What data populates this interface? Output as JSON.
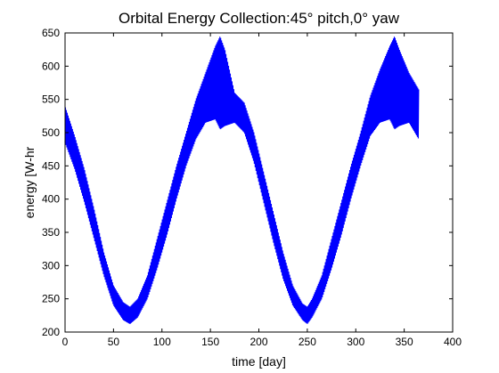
{
  "chart_data": {
    "type": "line",
    "title": "Orbital Energy Collection:45° pitch,0° yaw",
    "xlabel": "time [day]",
    "ylabel": "energy [W-hr",
    "xlim": [
      0,
      400
    ],
    "ylim": [
      200,
      650
    ],
    "xticks": [
      0,
      50,
      100,
      150,
      200,
      250,
      300,
      350,
      400
    ],
    "yticks": [
      200,
      250,
      300,
      350,
      400,
      450,
      500,
      550,
      600,
      650
    ],
    "grid": false,
    "legend": "none",
    "series": [
      {
        "color": "#0000ff",
        "style": "dense oscillating band",
        "x": [
          0,
          10,
          20,
          30,
          40,
          50,
          60,
          67,
          75,
          85,
          95,
          105,
          115,
          125,
          135,
          145,
          155,
          160,
          165,
          175,
          185,
          195,
          205,
          215,
          225,
          235,
          245,
          250,
          255,
          265,
          275,
          285,
          295,
          305,
          315,
          325,
          335,
          340,
          345,
          355,
          365
        ],
        "y_low": [
          485,
          445,
          395,
          340,
          285,
          240,
          218,
          212,
          222,
          250,
          295,
          345,
          400,
          450,
          490,
          515,
          520,
          505,
          510,
          515,
          500,
          455,
          395,
          335,
          280,
          240,
          218,
          212,
          222,
          250,
          295,
          345,
          400,
          450,
          495,
          515,
          520,
          505,
          510,
          515,
          490
        ],
        "y_high": [
          540,
          495,
          445,
          385,
          320,
          270,
          245,
          238,
          250,
          285,
          340,
          395,
          450,
          500,
          550,
          590,
          630,
          645,
          625,
          560,
          545,
          500,
          440,
          380,
          320,
          270,
          243,
          238,
          250,
          285,
          340,
          395,
          450,
          500,
          555,
          595,
          630,
          645,
          625,
          590,
          565
        ]
      }
    ]
  }
}
